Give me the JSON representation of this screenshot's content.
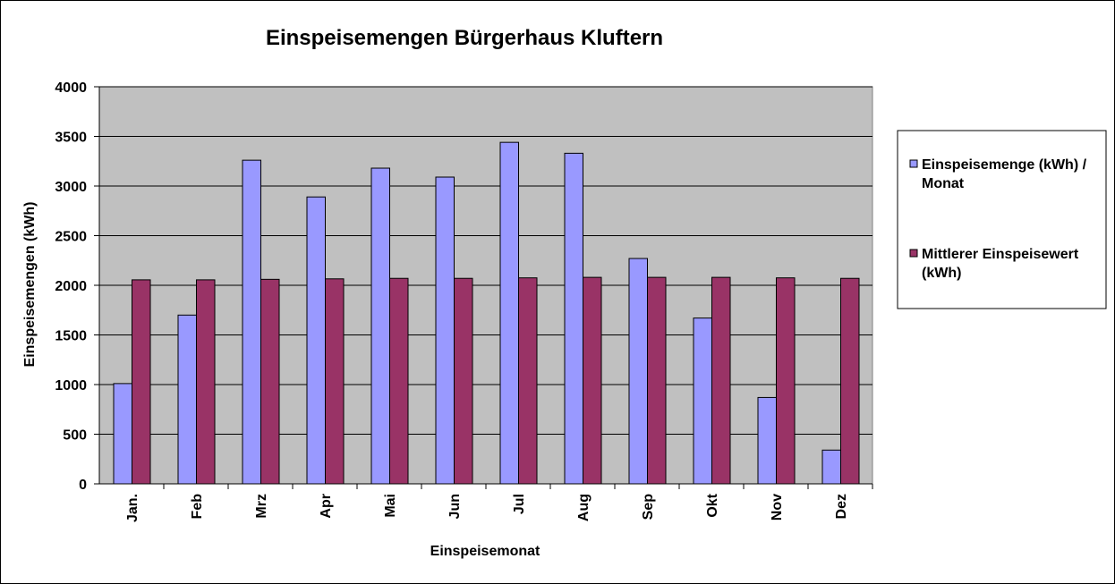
{
  "chart_data": {
    "type": "bar",
    "title": "Einspeisemengen Bürgerhaus Kluftern",
    "xlabel": "Einspeisemonat",
    "ylabel": "Einspeisemengen (kWh)",
    "ylim": [
      0,
      4000
    ],
    "yticks": [
      0,
      500,
      1000,
      1500,
      2000,
      2500,
      3000,
      3500,
      4000
    ],
    "grid": true,
    "legend_position": "right",
    "plot_background": "#c0c0c0",
    "categories": [
      "Jan.",
      "Feb",
      "Mrz",
      "Apr",
      "Mai",
      "Jun",
      "Jul",
      "Aug",
      "Sep",
      "Okt",
      "Nov",
      "Dez"
    ],
    "series": [
      {
        "name": "Einspeisemenge (kWh) / Monat",
        "legend_lines": [
          "Einspeisemenge (kWh) /",
          "Monat"
        ],
        "color": "#9999ff",
        "values": [
          1010,
          1700,
          3260,
          2890,
          3180,
          3090,
          3440,
          3330,
          2270,
          1670,
          870,
          340
        ]
      },
      {
        "name": "Mittlerer Einspeisewert (kWh)",
        "legend_lines": [
          "Mittlerer Einspeisewert",
          "(kWh)"
        ],
        "color": "#993366",
        "values": [
          2055,
          2055,
          2060,
          2065,
          2070,
          2070,
          2075,
          2080,
          2080,
          2080,
          2075,
          2070
        ]
      }
    ]
  }
}
